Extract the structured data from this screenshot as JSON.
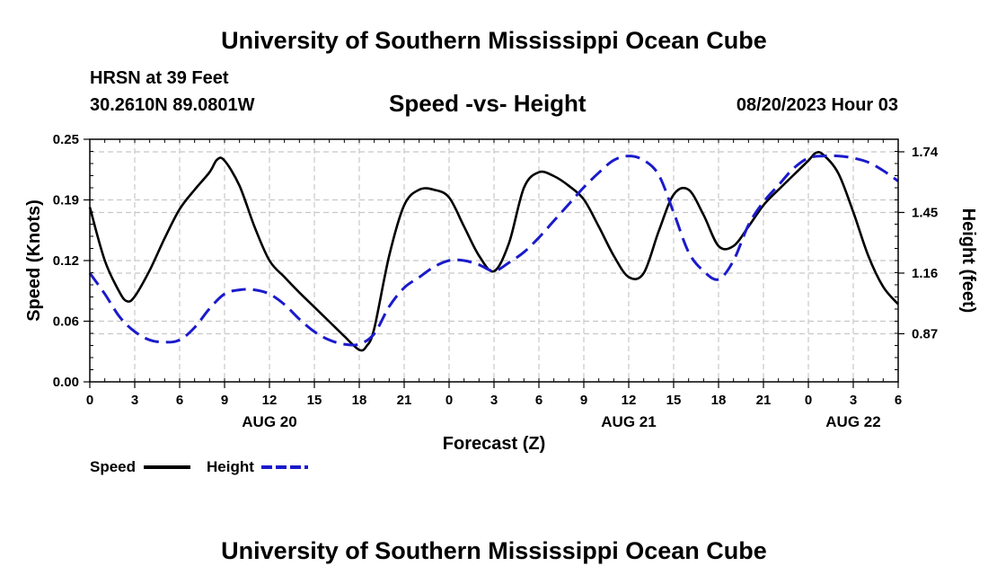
{
  "header": {
    "title": "University of Southern Mississippi Ocean Cube",
    "station": "HRSN at 39 Feet",
    "coordinates": "30.2610N  89.0801W",
    "timestamp": "08/20/2023 Hour 03"
  },
  "footer": {
    "title": "University of Southern Mississippi Ocean Cube"
  },
  "colors": {
    "speed": "#000000",
    "height": "#1a1acc",
    "grid": "#c8c8c8"
  },
  "chart_data": {
    "type": "line",
    "title": "Speed -vs- Height",
    "xlabel": "Forecast (Z)",
    "ylabel": "Speed (Knots)",
    "y2label": "Height (feet)",
    "xlim": [
      0,
      54
    ],
    "ylim": [
      0,
      0.25
    ],
    "y2lim": [
      0.64,
      1.8
    ],
    "x_tick_values": [
      0,
      3,
      6,
      9,
      12,
      15,
      18,
      21,
      24,
      27,
      30,
      33,
      36,
      39,
      42,
      45,
      48,
      51,
      54
    ],
    "x_tick_labels": [
      "0",
      "3",
      "6",
      "9",
      "12",
      "15",
      "18",
      "21",
      "0",
      "3",
      "6",
      "9",
      "12",
      "15",
      "18",
      "21",
      "0",
      "3",
      "6"
    ],
    "date_labels": [
      {
        "x": 12,
        "label": "AUG 20"
      },
      {
        "x": 36,
        "label": "AUG 21"
      },
      {
        "x": 51,
        "label": "AUG 22"
      }
    ],
    "y_tick_values": [
      0,
      0.0625,
      0.125,
      0.1875,
      0.25
    ],
    "y_tick_labels": [
      "0.00",
      "0.06",
      "0.12",
      "0.19",
      "0.25"
    ],
    "y2_tick_values": [
      0.87,
      1.16,
      1.45,
      1.74
    ],
    "y2_tick_labels": [
      "0.87",
      "1.16",
      "1.45",
      "1.74"
    ],
    "legend": [
      "Speed",
      "Height"
    ],
    "series": [
      {
        "name": "Speed",
        "axis": "left",
        "x": [
          0,
          1,
          2,
          2.5,
          3,
          4,
          5,
          6,
          7,
          8,
          8.5,
          9,
          10,
          11,
          12,
          13,
          14,
          15,
          16,
          17,
          18,
          18.5,
          19,
          20,
          21,
          22,
          23,
          24,
          25,
          26,
          27,
          28,
          29,
          30,
          31,
          32,
          33,
          34,
          35,
          36,
          37,
          38,
          39,
          40,
          41,
          42,
          43,
          44,
          45,
          46,
          47,
          48,
          48.5,
          49,
          50,
          51,
          52,
          53,
          54
        ],
        "values": [
          0.18,
          0.125,
          0.092,
          0.083,
          0.088,
          0.115,
          0.148,
          0.178,
          0.198,
          0.216,
          0.229,
          0.228,
          0.202,
          0.16,
          0.125,
          0.108,
          0.092,
          0.077,
          0.062,
          0.047,
          0.033,
          0.037,
          0.055,
          0.13,
          0.182,
          0.198,
          0.198,
          0.19,
          0.16,
          0.13,
          0.114,
          0.143,
          0.2,
          0.216,
          0.212,
          0.202,
          0.188,
          0.16,
          0.13,
          0.108,
          0.112,
          0.155,
          0.193,
          0.198,
          0.172,
          0.14,
          0.14,
          0.16,
          0.182,
          0.198,
          0.213,
          0.228,
          0.236,
          0.234,
          0.215,
          0.175,
          0.13,
          0.098,
          0.08
        ]
      },
      {
        "name": "Height",
        "axis": "right",
        "x": [
          0,
          1,
          2,
          3,
          4,
          5,
          6,
          7,
          8,
          9,
          10,
          11,
          12,
          13,
          14,
          15,
          16,
          17,
          18,
          19,
          20,
          21,
          22,
          23,
          24,
          25,
          26,
          27,
          28,
          29,
          30,
          31,
          32,
          33,
          34,
          35,
          36,
          37,
          38,
          39,
          40,
          41,
          42,
          43,
          44,
          45,
          46,
          47,
          48,
          49,
          50,
          51,
          52,
          53,
          54
        ],
        "values": [
          1.16,
          1.06,
          0.95,
          0.88,
          0.84,
          0.83,
          0.84,
          0.9,
          0.99,
          1.06,
          1.08,
          1.08,
          1.06,
          1.01,
          0.94,
          0.88,
          0.84,
          0.82,
          0.82,
          0.87,
          1.0,
          1.09,
          1.14,
          1.19,
          1.22,
          1.22,
          1.2,
          1.17,
          1.21,
          1.26,
          1.33,
          1.41,
          1.49,
          1.57,
          1.64,
          1.7,
          1.72,
          1.7,
          1.63,
          1.45,
          1.26,
          1.17,
          1.13,
          1.22,
          1.39,
          1.5,
          1.58,
          1.66,
          1.71,
          1.72,
          1.72,
          1.71,
          1.69,
          1.65,
          1.6
        ]
      }
    ]
  }
}
